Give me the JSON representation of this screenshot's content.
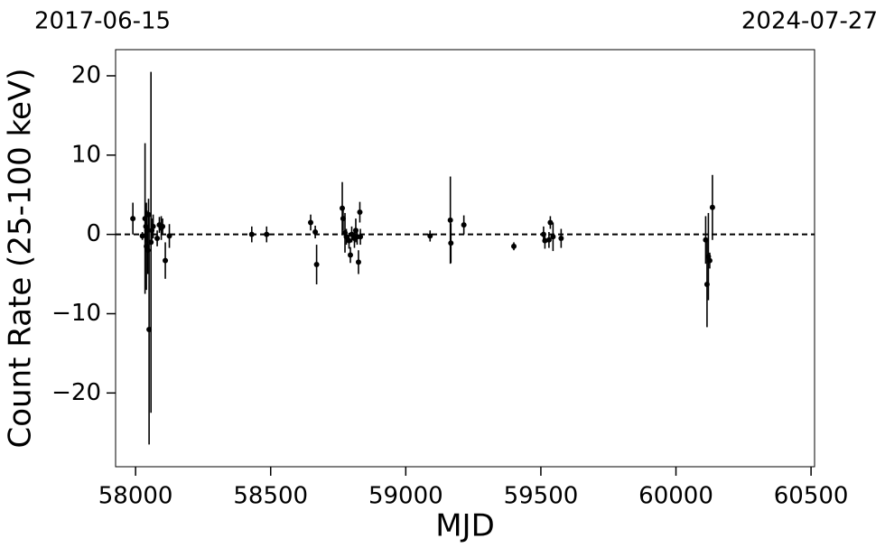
{
  "chart_data": {
    "type": "errorbar",
    "top_left_label": "2017-06-15",
    "top_right_label": "2024-07-27",
    "xlabel": "MJD",
    "ylabel": "Count Rate (25-100 keV)",
    "color": "#000000",
    "reference_line": 0,
    "xlim": [
      57926,
      60513
    ],
    "ylim": [
      -29.3,
      23.3
    ],
    "xticks": [
      58000,
      58500,
      59000,
      59500,
      60000,
      60500
    ],
    "yticks": [
      {
        "value": -20,
        "label": "−20"
      },
      {
        "value": -10,
        "label": "−10"
      },
      0,
      10,
      20
    ],
    "x": [
      57990,
      58025,
      58035,
      58038,
      58040,
      58042,
      58045,
      58048,
      58050,
      58057,
      58060,
      58065,
      58080,
      58088,
      58095,
      58100,
      58110,
      58125,
      58430,
      58485,
      58648,
      58665,
      58670,
      58765,
      58768,
      58775,
      58780,
      58790,
      58795,
      58800,
      58810,
      58815,
      58820,
      58825,
      58830,
      58832,
      59090,
      59165,
      59167,
      59215,
      59400,
      59510,
      59515,
      59530,
      59535,
      59545,
      59575,
      60110,
      60115,
      60120,
      60125,
      60135
    ],
    "values": [
      2.0,
      -0.2,
      2.0,
      1.0,
      -1.5,
      0.5,
      -2.0,
      2.5,
      -12.0,
      -1.0,
      0.5,
      1.0,
      -0.5,
      1.2,
      0.8,
      1.0,
      -3.3,
      -0.2,
      0.0,
      0.0,
      1.5,
      0.3,
      -3.8,
      3.3,
      2.0,
      0.2,
      -0.3,
      -0.8,
      -2.6,
      0.0,
      -0.5,
      0.5,
      -0.3,
      -3.5,
      2.8,
      -0.3,
      -0.2,
      1.8,
      -1.1,
      1.2,
      -1.5,
      0.0,
      -0.8,
      -0.7,
      1.5,
      -0.3,
      -0.5,
      -0.7,
      -6.3,
      -2.8,
      -3.3,
      3.4
    ],
    "errors": [
      2.0,
      0.5,
      9.5,
      2.0,
      5.5,
      2.5,
      3.0,
      2.0,
      14.5,
      21.5,
      1.5,
      1.5,
      1.0,
      1.0,
      1.5,
      1.0,
      2.3,
      1.5,
      1.0,
      1.0,
      1.0,
      0.8,
      2.5,
      3.3,
      1.5,
      2.5,
      1.0,
      1.0,
      1.0,
      1.0,
      1.2,
      1.5,
      1.0,
      1.5,
      1.3,
      1.0,
      0.7,
      5.5,
      2.5,
      1.2,
      0.5,
      1.0,
      1.0,
      1.0,
      0.8,
      1.8,
      1.2,
      3.0,
      5.4,
      5.5,
      1.0,
      4.1
    ]
  }
}
